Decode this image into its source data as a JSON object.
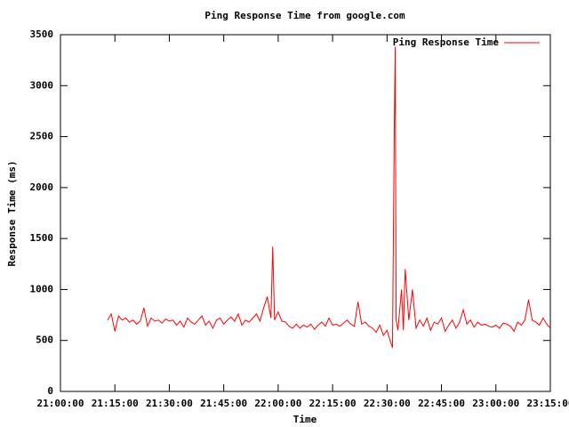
{
  "chart_data": {
    "type": "line",
    "title": "Ping Response Time from google.com",
    "x_label": "Time",
    "y_label": "Response Time (ms)",
    "legend": "top-right",
    "series": [
      {
        "name": "Ping Response Time",
        "color": "#ff0000",
        "x": [
          "21:13:00",
          "21:14:00",
          "21:15:00",
          "21:16:00",
          "21:17:00",
          "21:18:00",
          "21:19:00",
          "21:20:00",
          "21:21:00",
          "21:22:00",
          "21:23:00",
          "21:24:00",
          "21:25:00",
          "21:26:00",
          "21:27:00",
          "21:28:00",
          "21:29:00",
          "21:30:00",
          "21:31:00",
          "21:32:00",
          "21:33:00",
          "21:34:00",
          "21:35:00",
          "21:36:00",
          "21:37:00",
          "21:38:00",
          "21:39:00",
          "21:40:00",
          "21:41:00",
          "21:42:00",
          "21:43:00",
          "21:44:00",
          "21:45:00",
          "21:46:00",
          "21:47:00",
          "21:48:00",
          "21:49:00",
          "21:50:00",
          "21:51:00",
          "21:52:00",
          "21:53:00",
          "21:54:00",
          "21:55:00",
          "21:56:00",
          "21:57:00",
          "21:58:00",
          "21:58:30",
          "21:59:00",
          "22:00:00",
          "22:01:00",
          "22:02:00",
          "22:03:00",
          "22:04:00",
          "22:05:00",
          "22:06:00",
          "22:07:00",
          "22:08:00",
          "22:09:00",
          "22:10:00",
          "22:11:00",
          "22:12:00",
          "22:13:00",
          "22:14:00",
          "22:15:00",
          "22:16:00",
          "22:17:00",
          "22:18:00",
          "22:19:00",
          "22:20:00",
          "22:21:00",
          "22:22:00",
          "22:23:00",
          "22:24:00",
          "22:25:00",
          "22:26:00",
          "22:27:00",
          "22:28:00",
          "22:29:00",
          "22:30:00",
          "22:31:00",
          "22:31:30",
          "22:32:00",
          "22:32:15",
          "22:32:30",
          "22:33:00",
          "22:34:00",
          "22:34:30",
          "22:35:00",
          "22:36:00",
          "22:37:00",
          "22:38:00",
          "22:39:00",
          "22:40:00",
          "22:41:00",
          "22:42:00",
          "22:43:00",
          "22:44:00",
          "22:45:00",
          "22:46:00",
          "22:47:00",
          "22:48:00",
          "22:49:00",
          "22:50:00",
          "22:51:00",
          "22:52:00",
          "22:53:00",
          "22:54:00",
          "22:55:00",
          "22:56:00",
          "22:57:00",
          "22:58:00",
          "22:59:00",
          "23:00:00",
          "23:01:00",
          "23:02:00",
          "23:03:00",
          "23:04:00",
          "23:05:00",
          "23:06:00",
          "23:07:00",
          "23:08:00",
          "23:09:00",
          "23:10:00",
          "23:11:00",
          "23:12:00",
          "23:13:00",
          "23:14:00",
          "23:15:00"
        ],
        "values": [
          700,
          760,
          590,
          740,
          700,
          720,
          680,
          700,
          660,
          690,
          820,
          640,
          720,
          690,
          700,
          670,
          710,
          690,
          700,
          650,
          690,
          630,
          720,
          680,
          660,
          700,
          740,
          650,
          690,
          620,
          700,
          720,
          660,
          700,
          730,
          690,
          760,
          650,
          700,
          680,
          720,
          760,
          690,
          820,
          930,
          720,
          1420,
          700,
          780,
          690,
          680,
          640,
          620,
          660,
          620,
          650,
          630,
          660,
          610,
          650,
          680,
          640,
          720,
          650,
          660,
          640,
          670,
          700,
          660,
          640,
          880,
          660,
          680,
          640,
          620,
          580,
          650,
          550,
          600,
          480,
          430,
          2600,
          3380,
          700,
          600,
          1000,
          600,
          1200,
          700,
          1000,
          620,
          700,
          640,
          720,
          600,
          680,
          660,
          720,
          590,
          650,
          700,
          620,
          680,
          800,
          660,
          700,
          630,
          680,
          650,
          660,
          640,
          630,
          650,
          620,
          670,
          660,
          640,
          590,
          680,
          650,
          700,
          900,
          700,
          680,
          650,
          720,
          660,
          620
        ]
      }
    ],
    "xlim": [
      "21:00:00",
      "23:15:00"
    ],
    "xticks": [
      "21:00:00",
      "21:15:00",
      "21:30:00",
      "21:45:00",
      "22:00:00",
      "22:15:00",
      "22:30:00",
      "22:45:00",
      "23:00:00",
      "23:15:00"
    ],
    "ylim": [
      0,
      3500
    ],
    "yticks": [
      0,
      500,
      1000,
      1500,
      2000,
      2500,
      3000,
      3500
    ]
  }
}
